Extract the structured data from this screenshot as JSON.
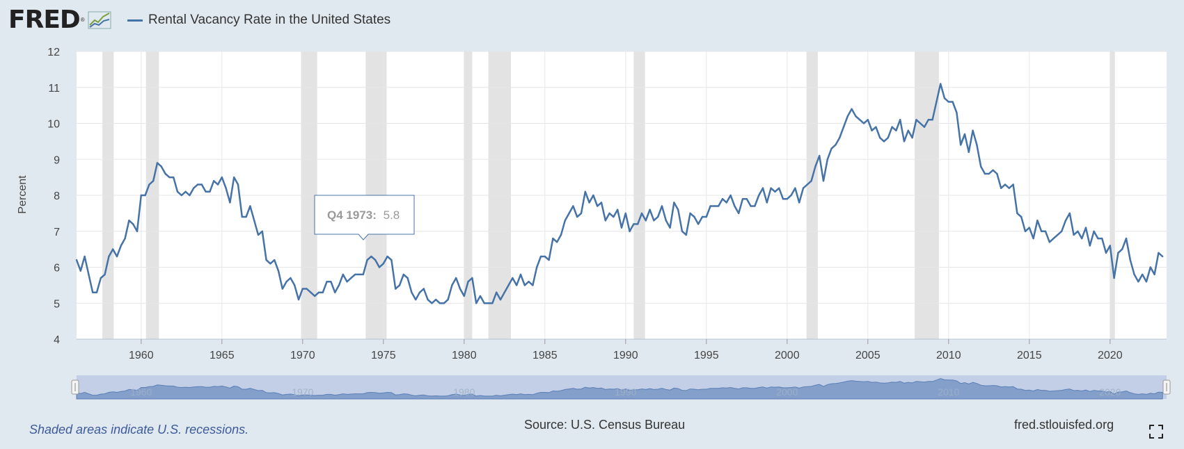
{
  "header": {
    "logo_text": "FRED",
    "series_label": "Rental Vacancy Rate in the United States",
    "series_color": "#4572a7"
  },
  "footer": {
    "recession_note": "Shaded areas indicate U.S. recessions.",
    "source": "Source: U.S. Census Bureau",
    "site": "fred.stlouisfed.org"
  },
  "tooltip": {
    "period": "Q4 1973:",
    "value": "5.8"
  },
  "chart_data": {
    "type": "line",
    "ylabel": "Percent",
    "xlim": [
      1956.0,
      2023.5
    ],
    "ylim": [
      4,
      12
    ],
    "xticks": [
      1960,
      1965,
      1970,
      1975,
      1980,
      1985,
      1990,
      1995,
      2000,
      2005,
      2010,
      2015,
      2020
    ],
    "yticks": [
      4,
      5,
      6,
      7,
      8,
      9,
      10,
      11,
      12
    ],
    "grid": true,
    "recessions": [
      [
        1957.6,
        1958.3
      ],
      [
        1960.3,
        1961.1
      ],
      [
        1969.9,
        1970.9
      ],
      [
        1973.9,
        1975.2
      ],
      [
        1980.0,
        1980.5
      ],
      [
        1981.5,
        1982.9
      ],
      [
        1990.5,
        1991.2
      ],
      [
        2001.2,
        2001.9
      ],
      [
        2007.9,
        2009.4
      ],
      [
        2020.0,
        2020.3
      ]
    ],
    "series": [
      {
        "name": "Rental Vacancy Rate in the United States",
        "x_start": 1956.0,
        "step": 0.25,
        "values": [
          6.2,
          5.9,
          6.3,
          5.8,
          5.3,
          5.3,
          5.7,
          5.8,
          6.3,
          6.5,
          6.3,
          6.6,
          6.8,
          7.3,
          7.2,
          7.0,
          8.0,
          8.0,
          8.3,
          8.4,
          8.9,
          8.8,
          8.6,
          8.5,
          8.5,
          8.1,
          8.0,
          8.1,
          8.0,
          8.2,
          8.3,
          8.3,
          8.1,
          8.1,
          8.4,
          8.3,
          8.5,
          8.2,
          7.8,
          8.5,
          8.3,
          7.4,
          7.4,
          7.7,
          7.3,
          6.9,
          7.0,
          6.2,
          6.1,
          6.2,
          5.9,
          5.4,
          5.6,
          5.7,
          5.5,
          5.1,
          5.4,
          5.4,
          5.3,
          5.2,
          5.3,
          5.3,
          5.6,
          5.6,
          5.3,
          5.5,
          5.8,
          5.6,
          5.7,
          5.8,
          5.8,
          5.8,
          6.2,
          6.3,
          6.2,
          6.0,
          6.1,
          6.3,
          6.2,
          5.4,
          5.5,
          5.8,
          5.7,
          5.3,
          5.1,
          5.3,
          5.4,
          5.1,
          5.0,
          5.1,
          5.0,
          5.0,
          5.1,
          5.5,
          5.7,
          5.4,
          5.2,
          5.6,
          5.7,
          5.0,
          5.2,
          5.0,
          5.0,
          5.0,
          5.3,
          5.1,
          5.3,
          5.5,
          5.7,
          5.5,
          5.8,
          5.5,
          5.6,
          5.5,
          6.0,
          6.3,
          6.3,
          6.2,
          6.8,
          6.7,
          6.9,
          7.3,
          7.5,
          7.7,
          7.4,
          7.5,
          8.1,
          7.8,
          8.0,
          7.7,
          7.8,
          7.3,
          7.5,
          7.4,
          7.6,
          7.1,
          7.5,
          7.0,
          7.2,
          7.2,
          7.5,
          7.3,
          7.6,
          7.3,
          7.4,
          7.7,
          7.3,
          7.1,
          7.8,
          7.6,
          7.0,
          6.9,
          7.5,
          7.4,
          7.2,
          7.4,
          7.4,
          7.7,
          7.7,
          7.7,
          7.9,
          7.8,
          8.0,
          7.7,
          7.5,
          7.9,
          7.9,
          7.7,
          7.7,
          8.0,
          8.2,
          7.8,
          8.2,
          8.1,
          8.2,
          7.9,
          7.9,
          8.0,
          8.2,
          7.8,
          8.2,
          8.3,
          8.4,
          8.8,
          9.1,
          8.4,
          9.0,
          9.3,
          9.4,
          9.6,
          9.9,
          10.2,
          10.4,
          10.2,
          10.1,
          10.0,
          10.1,
          9.8,
          9.9,
          9.6,
          9.5,
          9.6,
          9.9,
          9.8,
          10.1,
          9.5,
          9.8,
          9.6,
          10.1,
          10.0,
          9.9,
          10.1,
          10.1,
          10.6,
          11.1,
          10.7,
          10.6,
          10.6,
          10.3,
          9.4,
          9.7,
          9.2,
          9.8,
          9.4,
          8.8,
          8.6,
          8.6,
          8.7,
          8.6,
          8.2,
          8.3,
          8.2,
          8.3,
          7.5,
          7.4,
          7.0,
          7.1,
          6.8,
          7.3,
          7.0,
          7.0,
          6.7,
          6.8,
          6.9,
          7.0,
          7.3,
          7.5,
          6.9,
          7.0,
          6.8,
          7.1,
          6.6,
          7.0,
          6.8,
          6.8,
          6.4,
          6.6,
          5.7,
          6.4,
          6.5,
          6.8,
          6.2,
          5.8,
          5.6,
          5.8,
          5.6,
          6.0,
          5.8,
          6.4,
          6.3
        ]
      }
    ]
  }
}
